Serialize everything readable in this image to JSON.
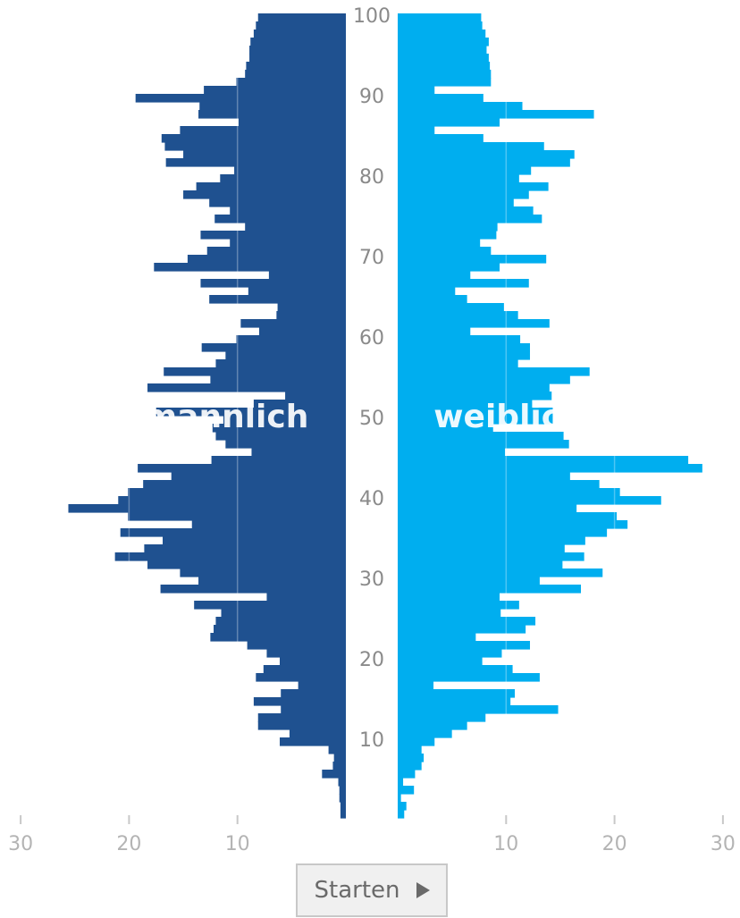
{
  "chart_data": {
    "type": "bar",
    "orientation": "horizontal",
    "subtype": "population-pyramid",
    "title": "",
    "xlim": [
      0,
      30
    ],
    "x_ticks": [
      "30",
      "20",
      "10",
      "10",
      "20",
      "30"
    ],
    "age_ticks": [
      "10",
      "20",
      "30",
      "40",
      "50",
      "60",
      "70",
      "80",
      "90",
      "100"
    ],
    "grid": true,
    "colors": {
      "male": "#1f5190",
      "female": "#00aeef"
    },
    "series": [
      {
        "name": "männlich",
        "values": [
          8.1,
          8.3,
          8.5,
          8.8,
          8.9,
          8.9,
          9.2,
          9.3,
          10.1,
          13.1,
          19.4,
          13.5,
          13.6,
          9.9,
          15.3,
          17.0,
          16.7,
          15.0,
          16.6,
          10.3,
          11.6,
          13.8,
          15.0,
          12.6,
          10.7,
          12.1,
          9.3,
          13.4,
          10.7,
          12.8,
          14.6,
          17.7,
          7.1,
          13.4,
          9.0,
          12.6,
          6.3,
          6.4,
          9.7,
          8.0,
          10.1,
          13.3,
          11.1,
          12.0,
          16.8,
          12.5,
          18.3,
          5.6,
          8.5,
          17.5,
          11.3,
          12.3,
          12.0,
          11.1,
          8.7,
          12.4,
          19.2,
          16.1,
          18.7,
          20.1,
          21.0,
          25.6,
          20.1,
          14.2,
          20.8,
          16.9,
          18.6,
          21.3,
          18.3,
          15.3,
          13.6,
          17.1,
          7.3,
          14.0,
          11.5,
          12.0,
          12.2,
          12.5,
          9.1,
          7.3,
          6.1,
          7.6,
          8.3,
          4.4,
          6.0,
          8.5,
          6.0,
          8.1,
          8.1,
          5.2,
          6.1,
          1.6,
          1.1,
          1.2,
          2.2,
          0.7,
          0.6,
          0.6,
          0.5,
          0.5
        ]
      },
      {
        "name": "weiblich",
        "values": [
          7.7,
          7.8,
          8.1,
          8.4,
          8.2,
          8.4,
          8.5,
          8.6,
          8.6,
          3.4,
          7.9,
          11.5,
          18.1,
          9.4,
          3.4,
          7.9,
          13.5,
          16.3,
          15.9,
          12.3,
          11.2,
          13.9,
          12.1,
          10.7,
          12.5,
          13.3,
          9.2,
          9.1,
          7.6,
          8.6,
          13.7,
          9.4,
          6.7,
          12.1,
          5.3,
          6.4,
          9.8,
          11.1,
          14.0,
          6.7,
          11.3,
          12.2,
          12.2,
          11.1,
          17.7,
          15.9,
          14.0,
          14.2,
          12.4,
          14.3,
          14.3,
          8.8,
          15.3,
          15.8,
          9.9,
          26.8,
          28.1,
          15.9,
          18.6,
          20.5,
          24.3,
          16.5,
          20.2,
          21.2,
          19.3,
          17.3,
          15.4,
          17.2,
          15.2,
          18.9,
          13.1,
          16.9,
          9.4,
          11.2,
          9.5,
          12.7,
          11.8,
          7.2,
          12.2,
          9.6,
          7.8,
          10.6,
          13.1,
          3.3,
          10.8,
          10.4,
          14.8,
          8.1,
          6.4,
          5.0,
          3.4,
          2.2,
          2.4,
          2.2,
          1.6,
          0.5,
          1.5,
          0.3,
          0.8,
          0.6
        ]
      }
    ]
  },
  "labels": {
    "male": "männlich",
    "female": "weiblich"
  },
  "controls": {
    "start_label": "Starten",
    "start_icon": "play-icon"
  }
}
